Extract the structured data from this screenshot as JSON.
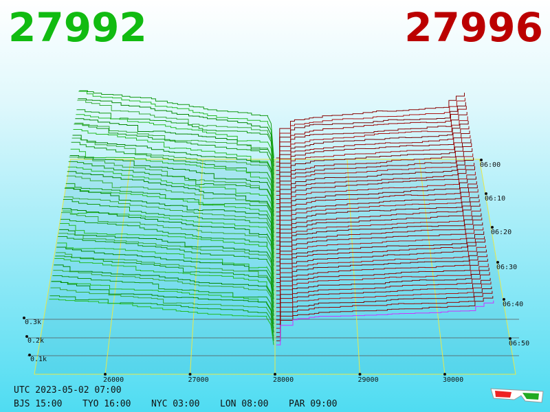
{
  "header": {
    "bid_price": "27992",
    "ask_price": "27996"
  },
  "price_axis": {
    "labels": [
      "26000",
      "27000",
      "28000",
      "29000",
      "30000"
    ]
  },
  "time_axis": {
    "labels": [
      "06:00",
      "06:10",
      "06:20",
      "06:30",
      "06:40",
      "06:50"
    ]
  },
  "depth_axis": {
    "labels": [
      "0.3k",
      "0.2k",
      "0.1k"
    ]
  },
  "clock": {
    "utc": "UTC 2023-05-02 07:00",
    "cities": [
      "BJS 15:00",
      "TYO 16:00",
      "NYC 03:00",
      "LON 08:00",
      "PAR 09:00"
    ]
  }
}
